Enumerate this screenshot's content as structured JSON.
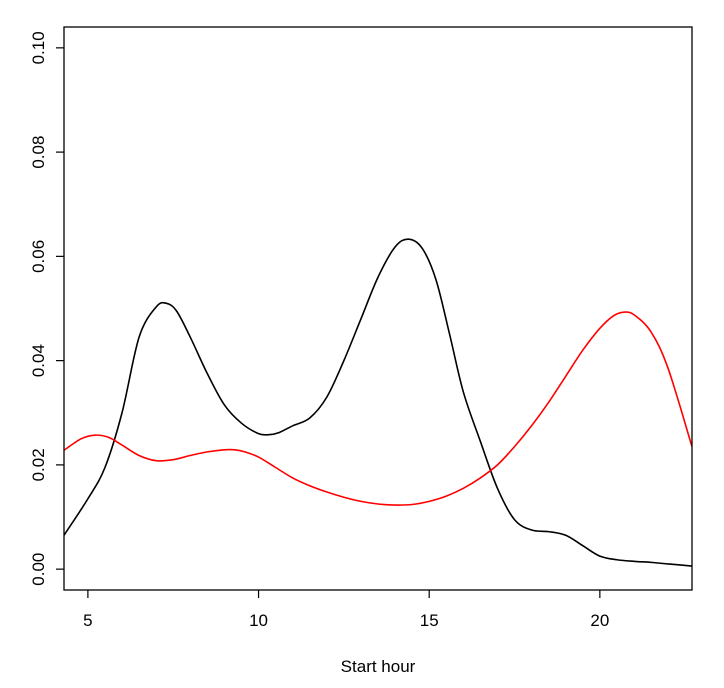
{
  "chart_data": {
    "type": "line",
    "title": "",
    "xlabel": "Start hour",
    "ylabel": "",
    "xlim": [
      4.3,
      22.7
    ],
    "ylim": [
      -0.004,
      0.104
    ],
    "xticks": [
      5,
      10,
      15,
      20
    ],
    "xtick_labels": [
      "5",
      "10",
      "15",
      "20"
    ],
    "yticks": [
      0.0,
      0.02,
      0.04,
      0.06,
      0.08,
      0.1
    ],
    "ytick_labels": [
      "0.00",
      "0.02",
      "0.04",
      "0.06",
      "0.08",
      "0.10"
    ],
    "grid": false,
    "legend": "none",
    "series": [
      {
        "color": "#000000",
        "x": [
          4.3,
          5.0,
          5.5,
          6.0,
          6.5,
          7.0,
          7.3,
          7.6,
          8.0,
          8.5,
          9.0,
          9.5,
          10.0,
          10.3,
          10.6,
          11.0,
          11.5,
          12.0,
          12.5,
          13.0,
          13.5,
          14.0,
          14.4,
          14.8,
          15.2,
          15.6,
          16.0,
          16.5,
          17.0,
          17.5,
          18.0,
          18.5,
          19.0,
          19.5,
          20.0,
          20.5,
          21.0,
          21.5,
          22.0,
          22.7
        ],
        "y": [
          0.0065,
          0.0135,
          0.0195,
          0.03,
          0.0445,
          0.0503,
          0.051,
          0.0495,
          0.0445,
          0.0375,
          0.0315,
          0.028,
          0.026,
          0.0258,
          0.0262,
          0.0275,
          0.029,
          0.033,
          0.04,
          0.048,
          0.056,
          0.0618,
          0.0633,
          0.0615,
          0.0555,
          0.045,
          0.034,
          0.0245,
          0.0155,
          0.0095,
          0.0075,
          0.0072,
          0.0065,
          0.0045,
          0.0025,
          0.0018,
          0.0015,
          0.0013,
          0.001,
          0.0006
        ]
      },
      {
        "color": "#ff0000",
        "x": [
          4.3,
          4.8,
          5.2,
          5.6,
          6.0,
          6.5,
          7.0,
          7.5,
          8.0,
          8.5,
          9.0,
          9.3,
          9.6,
          10.0,
          10.5,
          11.0,
          11.5,
          12.0,
          12.5,
          13.0,
          13.5,
          14.0,
          14.5,
          15.0,
          15.5,
          16.0,
          16.5,
          17.0,
          17.5,
          18.0,
          18.5,
          19.0,
          19.5,
          20.0,
          20.4,
          20.7,
          21.0,
          21.5,
          22.0,
          22.7
        ],
        "y": [
          0.0228,
          0.025,
          0.0257,
          0.0253,
          0.0238,
          0.0218,
          0.0208,
          0.021,
          0.0218,
          0.0225,
          0.0229,
          0.0229,
          0.0225,
          0.0215,
          0.0195,
          0.0175,
          0.016,
          0.0148,
          0.0138,
          0.013,
          0.0125,
          0.0123,
          0.0124,
          0.013,
          0.014,
          0.0155,
          0.0175,
          0.02,
          0.0235,
          0.0275,
          0.032,
          0.037,
          0.042,
          0.0462,
          0.0486,
          0.0493,
          0.0488,
          0.0455,
          0.0385,
          0.0235
        ]
      }
    ]
  }
}
